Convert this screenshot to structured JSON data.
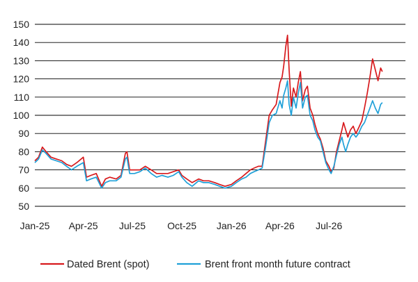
{
  "chart_data": {
    "type": "line",
    "title": "",
    "xlabel": "",
    "ylabel": "",
    "ylim": [
      50,
      150
    ],
    "yticks": [
      50,
      60,
      70,
      80,
      90,
      100,
      110,
      120,
      130,
      140,
      150
    ],
    "xlim": [
      "2025-01-01",
      "2026-11-20"
    ],
    "xticks": [
      {
        "label": "Jan-25",
        "date": "2025-01-01"
      },
      {
        "label": "Apr-25",
        "date": "2025-04-01"
      },
      {
        "label": "Jul-25",
        "date": "2025-07-01"
      },
      {
        "label": "Oct-25",
        "date": "2025-10-01"
      },
      {
        "label": "Jan-26",
        "date": "2026-01-01"
      },
      {
        "label": "Apr-26",
        "date": "2026-04-01"
      },
      {
        "label": "Jul-26",
        "date": "2026-07-01"
      }
    ],
    "grid": "horizontal",
    "legend": "bottom",
    "series": [
      {
        "name": "Dated Brent (spot)",
        "color": "#d7191c",
        "points": [
          [
            "2025-01-01",
            75
          ],
          [
            "2025-01-08",
            77
          ],
          [
            "2025-01-15",
            82.5
          ],
          [
            "2025-01-22",
            80
          ],
          [
            "2025-01-31",
            77
          ],
          [
            "2025-02-10",
            76
          ],
          [
            "2025-02-20",
            75
          ],
          [
            "2025-03-01",
            73
          ],
          [
            "2025-03-10",
            72
          ],
          [
            "2025-03-20",
            74
          ],
          [
            "2025-04-01",
            77
          ],
          [
            "2025-04-07",
            66
          ],
          [
            "2025-04-15",
            67
          ],
          [
            "2025-04-25",
            68
          ],
          [
            "2025-05-05",
            61
          ],
          [
            "2025-05-12",
            65
          ],
          [
            "2025-05-20",
            66
          ],
          [
            "2025-06-01",
            65
          ],
          [
            "2025-06-10",
            67
          ],
          [
            "2025-06-18",
            79
          ],
          [
            "2025-06-21",
            80
          ],
          [
            "2025-06-26",
            70
          ],
          [
            "2025-07-05",
            70
          ],
          [
            "2025-07-15",
            70
          ],
          [
            "2025-07-25",
            72
          ],
          [
            "2025-08-05",
            70
          ],
          [
            "2025-08-15",
            68
          ],
          [
            "2025-08-25",
            68
          ],
          [
            "2025-09-05",
            68
          ],
          [
            "2025-09-15",
            69
          ],
          [
            "2025-09-25",
            70
          ],
          [
            "2025-10-01",
            67
          ],
          [
            "2025-10-10",
            65
          ],
          [
            "2025-10-20",
            63
          ],
          [
            "2025-11-01",
            65
          ],
          [
            "2025-11-10",
            64
          ],
          [
            "2025-11-20",
            64
          ],
          [
            "2025-12-01",
            63
          ],
          [
            "2025-12-10",
            62
          ],
          [
            "2025-12-20",
            61
          ],
          [
            "2026-01-01",
            62
          ],
          [
            "2026-01-10",
            64
          ],
          [
            "2026-01-20",
            66
          ],
          [
            "2026-01-28",
            68
          ],
          [
            "2026-02-05",
            70
          ],
          [
            "2026-02-12",
            71
          ],
          [
            "2026-02-20",
            72
          ],
          [
            "2026-02-27",
            72
          ],
          [
            "2026-03-05",
            85
          ],
          [
            "2026-03-12",
            100
          ],
          [
            "2026-03-18",
            103
          ],
          [
            "2026-03-25",
            106
          ],
          [
            "2026-04-01",
            118
          ],
          [
            "2026-04-05",
            121
          ],
          [
            "2026-04-08",
            127
          ],
          [
            "2026-04-12",
            138
          ],
          [
            "2026-04-15",
            144
          ],
          [
            "2026-04-18",
            125
          ],
          [
            "2026-04-22",
            105
          ],
          [
            "2026-04-26",
            115
          ],
          [
            "2026-05-01",
            110
          ],
          [
            "2026-05-05",
            118
          ],
          [
            "2026-05-09",
            124
          ],
          [
            "2026-05-13",
            108
          ],
          [
            "2026-05-18",
            114
          ],
          [
            "2026-05-22",
            116
          ],
          [
            "2026-05-27",
            104
          ],
          [
            "2026-06-01",
            100
          ],
          [
            "2026-06-05",
            95
          ],
          [
            "2026-06-10",
            90
          ],
          [
            "2026-06-15",
            87
          ],
          [
            "2026-06-20",
            82
          ],
          [
            "2026-06-25",
            75
          ],
          [
            "2026-07-01",
            72
          ],
          [
            "2026-07-05",
            69
          ],
          [
            "2026-07-10",
            71
          ],
          [
            "2026-07-15",
            80
          ],
          [
            "2026-07-20",
            86
          ],
          [
            "2026-07-25",
            92
          ],
          [
            "2026-07-28",
            96
          ],
          [
            "2026-08-01",
            92
          ],
          [
            "2026-08-05",
            88
          ],
          [
            "2026-08-10",
            92
          ],
          [
            "2026-08-15",
            94
          ],
          [
            "2026-08-20",
            90
          ],
          [
            "2026-08-25",
            93
          ],
          [
            "2026-08-31",
            97
          ],
          [
            "2026-09-05",
            104
          ],
          [
            "2026-09-10",
            112
          ],
          [
            "2026-09-15",
            121
          ],
          [
            "2026-09-20",
            131
          ],
          [
            "2026-09-25",
            125
          ],
          [
            "2026-09-30",
            119
          ],
          [
            "2026-10-05",
            126
          ],
          [
            "2026-10-08",
            124
          ]
        ]
      },
      {
        "name": "Brent front month future contract",
        "color": "#1fa0d8",
        "points": [
          [
            "2025-01-01",
            74
          ],
          [
            "2025-01-08",
            76
          ],
          [
            "2025-01-15",
            81
          ],
          [
            "2025-01-22",
            79
          ],
          [
            "2025-01-31",
            76
          ],
          [
            "2025-02-10",
            75
          ],
          [
            "2025-02-20",
            74
          ],
          [
            "2025-03-01",
            72
          ],
          [
            "2025-03-10",
            70
          ],
          [
            "2025-03-20",
            72
          ],
          [
            "2025-04-01",
            74
          ],
          [
            "2025-04-07",
            64
          ],
          [
            "2025-04-15",
            65
          ],
          [
            "2025-04-25",
            66
          ],
          [
            "2025-05-05",
            60
          ],
          [
            "2025-05-12",
            63
          ],
          [
            "2025-05-20",
            64
          ],
          [
            "2025-06-01",
            64
          ],
          [
            "2025-06-10",
            66
          ],
          [
            "2025-06-18",
            76
          ],
          [
            "2025-06-21",
            77
          ],
          [
            "2025-06-26",
            68
          ],
          [
            "2025-07-05",
            68
          ],
          [
            "2025-07-15",
            69
          ],
          [
            "2025-07-25",
            71
          ],
          [
            "2025-08-05",
            68
          ],
          [
            "2025-08-15",
            66
          ],
          [
            "2025-08-25",
            67
          ],
          [
            "2025-09-05",
            66
          ],
          [
            "2025-09-15",
            67
          ],
          [
            "2025-09-25",
            69
          ],
          [
            "2025-10-01",
            66
          ],
          [
            "2025-10-10",
            63
          ],
          [
            "2025-10-20",
            61
          ],
          [
            "2025-11-01",
            64
          ],
          [
            "2025-11-10",
            63
          ],
          [
            "2025-11-20",
            63
          ],
          [
            "2025-12-01",
            62
          ],
          [
            "2025-12-10",
            61
          ],
          [
            "2025-12-20",
            60
          ],
          [
            "2026-01-01",
            61
          ],
          [
            "2026-01-10",
            63
          ],
          [
            "2026-01-20",
            65
          ],
          [
            "2026-01-28",
            66
          ],
          [
            "2026-02-05",
            68
          ],
          [
            "2026-02-12",
            69
          ],
          [
            "2026-02-20",
            70
          ],
          [
            "2026-02-27",
            71
          ],
          [
            "2026-03-05",
            82
          ],
          [
            "2026-03-12",
            96
          ],
          [
            "2026-03-18",
            100
          ],
          [
            "2026-03-25",
            101
          ],
          [
            "2026-04-01",
            108
          ],
          [
            "2026-04-05",
            104
          ],
          [
            "2026-04-08",
            111
          ],
          [
            "2026-04-12",
            115
          ],
          [
            "2026-04-15",
            119
          ],
          [
            "2026-04-18",
            106
          ],
          [
            "2026-04-22",
            100
          ],
          [
            "2026-04-26",
            110
          ],
          [
            "2026-05-01",
            104
          ],
          [
            "2026-05-05",
            112
          ],
          [
            "2026-05-09",
            118
          ],
          [
            "2026-05-13",
            104
          ],
          [
            "2026-05-18",
            110
          ],
          [
            "2026-05-22",
            111
          ],
          [
            "2026-05-27",
            100
          ],
          [
            "2026-06-01",
            97
          ],
          [
            "2026-06-05",
            92
          ],
          [
            "2026-06-10",
            88
          ],
          [
            "2026-06-15",
            86
          ],
          [
            "2026-06-20",
            80
          ],
          [
            "2026-06-25",
            74
          ],
          [
            "2026-07-01",
            70
          ],
          [
            "2026-07-05",
            68
          ],
          [
            "2026-07-10",
            72
          ],
          [
            "2026-07-15",
            78
          ],
          [
            "2026-07-20",
            84
          ],
          [
            "2026-07-25",
            88
          ],
          [
            "2026-07-28",
            84
          ],
          [
            "2026-08-01",
            80
          ],
          [
            "2026-08-05",
            84
          ],
          [
            "2026-08-10",
            88
          ],
          [
            "2026-08-15",
            90
          ],
          [
            "2026-08-20",
            88
          ],
          [
            "2026-08-25",
            90
          ],
          [
            "2026-08-31",
            94
          ],
          [
            "2026-09-05",
            96
          ],
          [
            "2026-09-10",
            100
          ],
          [
            "2026-09-15",
            104
          ],
          [
            "2026-09-20",
            108
          ],
          [
            "2026-09-25",
            104
          ],
          [
            "2026-09-30",
            101
          ],
          [
            "2026-10-05",
            106
          ],
          [
            "2026-10-08",
            107
          ]
        ]
      }
    ]
  }
}
